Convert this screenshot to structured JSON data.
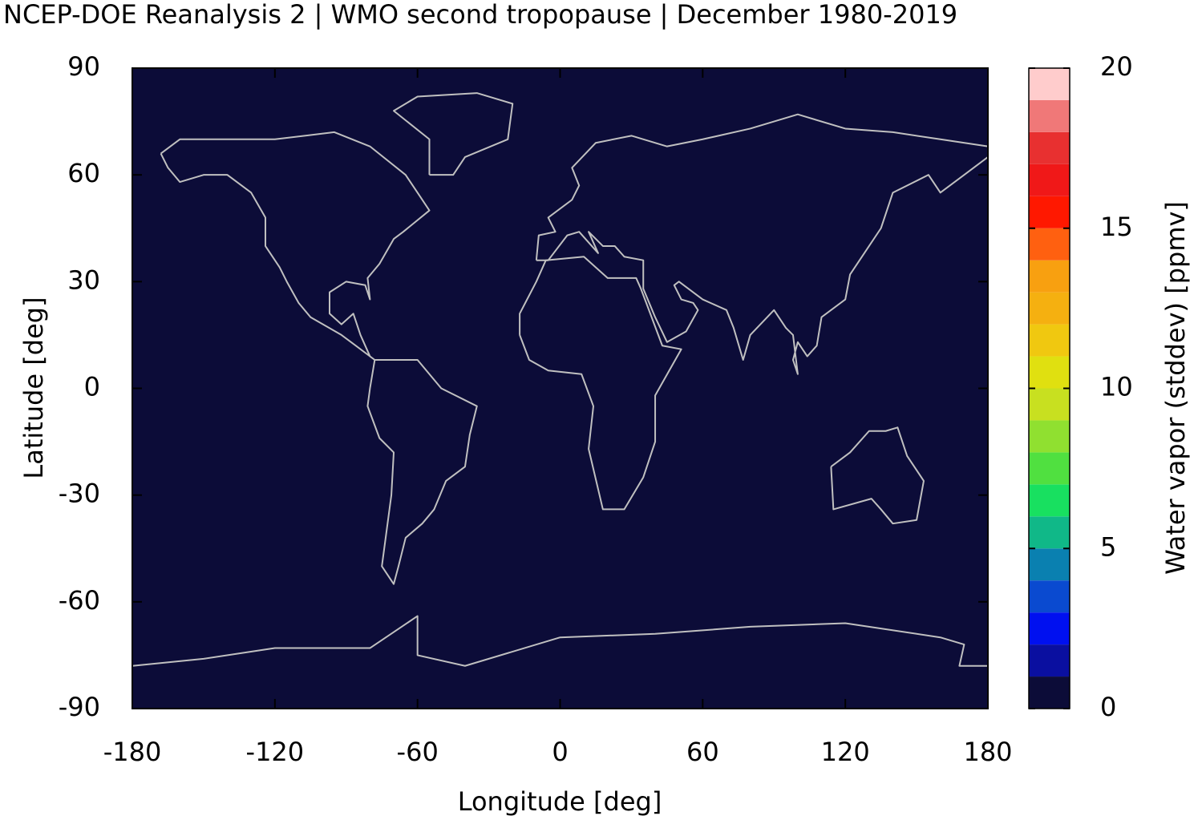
{
  "chart_data": {
    "type": "heatmap-map",
    "title": "NCEP-DOE Reanalysis 2 | WMO second tropopause | December 1980-2019",
    "xlabel": "Longitude [deg]",
    "ylabel": "Latitude [deg]",
    "xlim": [
      -180,
      180
    ],
    "xticks": [
      -180,
      -120,
      -60,
      0,
      60,
      120,
      180
    ],
    "ylim": [
      -90,
      90
    ],
    "yticks": [
      -90,
      -60,
      -30,
      0,
      30,
      60,
      90
    ],
    "values": [
      0
    ],
    "colorbar": {
      "label": "Water vapor (stddev) [ppmv]",
      "clim": [
        0,
        20
      ],
      "ticks": [
        0,
        5,
        10,
        15,
        20
      ],
      "levels": [
        0,
        1,
        2,
        3,
        4,
        5,
        6,
        7,
        8,
        9,
        10,
        11,
        12,
        13,
        14,
        15,
        16,
        17,
        18,
        19,
        20
      ],
      "colors": [
        "#0c0c38",
        "#0a0fa0",
        "#0010f0",
        "#0a4ad0",
        "#0a80b0",
        "#10b888",
        "#18e060",
        "#50e040",
        "#90e030",
        "#c8e020",
        "#e0e010",
        "#f0c810",
        "#f5b010",
        "#f8a010",
        "#ff6010",
        "#ff1800",
        "#f01818",
        "#e83030",
        "#f07878",
        "#ffcccc"
      ]
    }
  }
}
